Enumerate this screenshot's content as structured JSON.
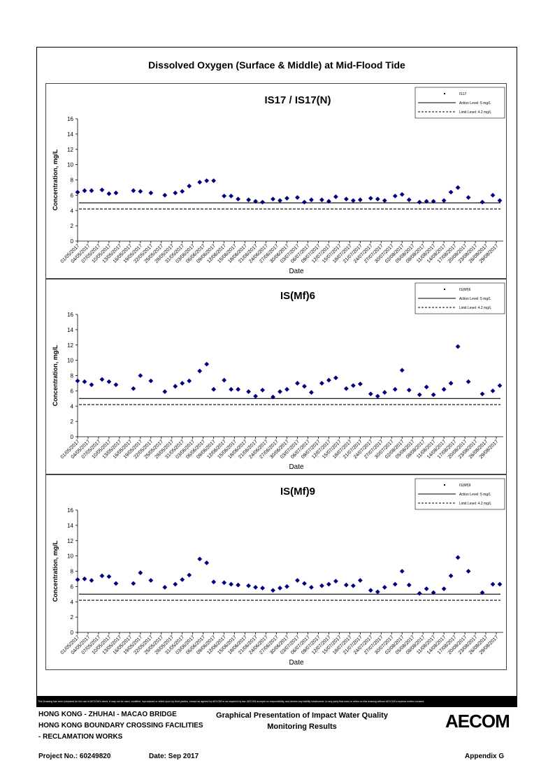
{
  "page": {
    "main_title": "Dissolved Oxygen (Surface & Middle) at Mid-Flood Tide",
    "disclaimer": "This Drawing has been prepared for the use of AECOM's client. It may not be used, modified, reproduced or relied upon by third parties, except as agreed by AECOM or as required by law. AECOM accepts no responsibility, and denies any liability whatsoever, to any party that uses or relies on this drawing without AECOM's express written consent.",
    "footer": {
      "line1": "HONG KONG - ZHUHAI - MACAO BRIDGE",
      "line2": "HONG KONG BOUNDARY CROSSING FACILITIES",
      "line3": "- RECLAMATION WORKS",
      "center1": "Graphical Presentation of Impact Water Quality",
      "center2": "Monitoring Results",
      "project": "Project No.: 60249820",
      "date": "Date: Sep 2017",
      "appendix": "Appendix G",
      "logo": "AECOM"
    },
    "colors": {
      "marker": "#00007f",
      "line": "#000000"
    }
  },
  "chart_data": [
    {
      "type": "scatter",
      "title": "IS17 / IS17(N)",
      "xlabel": "Date",
      "ylabel": "Concentration, mg/L",
      "ylim": [
        0,
        16
      ],
      "yticks": [
        0,
        2,
        4,
        6,
        8,
        10,
        12,
        14,
        16
      ],
      "xlim": [
        "2017-05-01",
        "2017-08-31"
      ],
      "xtick_labels": [
        "01/05/2017",
        "04/05/2017",
        "07/05/2017",
        "10/05/2017",
        "13/05/2017",
        "16/05/2017",
        "19/05/2017",
        "22/05/2017",
        "25/05/2017",
        "28/05/2017",
        "31/05/2017",
        "03/06/2017",
        "06/06/2017",
        "09/06/2017",
        "12/06/2017",
        "15/06/2017",
        "18/06/2017",
        "21/06/2017",
        "24/06/2017",
        "27/06/2017",
        "30/06/2017",
        "03/07/2017",
        "06/07/2017",
        "09/07/2017",
        "12/07/2017",
        "15/07/2017",
        "18/07/2017",
        "21/07/2017",
        "24/07/2017",
        "27/07/2017",
        "30/07/2017",
        "02/08/2017",
        "05/08/2017",
        "08/08/2017",
        "11/08/2017",
        "14/08/2017",
        "17/08/2017",
        "20/08/2017",
        "23/08/2017",
        "26/08/2017",
        "29/08/2017"
      ],
      "legend": {
        "placement": "top-right",
        "entries": [
          "IS17",
          "Action Level: 5 mg/L",
          "Limit Level: 4.2 mg/L"
        ]
      },
      "reference_lines": [
        {
          "name": "Action Level: 5 mg/L",
          "y": 5,
          "style": "solid"
        },
        {
          "name": "Limit Level: 4.2 mg/L",
          "y": 4.2,
          "style": "dashed"
        }
      ],
      "series": [
        {
          "name": "IS17",
          "x": [
            "2017-05-01",
            "2017-05-03",
            "2017-05-05",
            "2017-05-08",
            "2017-05-10",
            "2017-05-12",
            "2017-05-17",
            "2017-05-19",
            "2017-05-22",
            "2017-05-26",
            "2017-05-29",
            "2017-05-31",
            "2017-06-02",
            "2017-06-05",
            "2017-06-07",
            "2017-06-09",
            "2017-06-12",
            "2017-06-14",
            "2017-06-16",
            "2017-06-19",
            "2017-06-21",
            "2017-06-23",
            "2017-06-26",
            "2017-06-28",
            "2017-06-30",
            "2017-07-03",
            "2017-07-05",
            "2017-07-07",
            "2017-07-10",
            "2017-07-12",
            "2017-07-14",
            "2017-07-17",
            "2017-07-19",
            "2017-07-21",
            "2017-07-24",
            "2017-07-26",
            "2017-07-28",
            "2017-07-31",
            "2017-08-02",
            "2017-08-04",
            "2017-08-07",
            "2017-08-09",
            "2017-08-11",
            "2017-08-14",
            "2017-08-16",
            "2017-08-18",
            "2017-08-21",
            "2017-08-25",
            "2017-08-28",
            "2017-08-30"
          ],
          "y": [
            6.4,
            6.6,
            6.6,
            6.7,
            6.2,
            6.3,
            6.6,
            6.5,
            6.3,
            6.0,
            6.3,
            6.5,
            7.2,
            7.7,
            7.9,
            7.9,
            5.9,
            5.9,
            5.5,
            5.4,
            5.2,
            5.1,
            5.5,
            5.3,
            5.6,
            5.7,
            5.1,
            5.4,
            5.4,
            5.2,
            5.8,
            5.5,
            5.3,
            5.4,
            5.6,
            5.5,
            5.3,
            5.9,
            6.1,
            5.4,
            5.1,
            5.2,
            5.2,
            5.3,
            6.4,
            7.0,
            5.7,
            5.1,
            6.0,
            5.3
          ]
        }
      ]
    },
    {
      "type": "scatter",
      "title": "IS(Mf)6",
      "xlabel": "Date",
      "ylabel": "Concentration, mg/L",
      "ylim": [
        0,
        16
      ],
      "yticks": [
        0,
        2,
        4,
        6,
        8,
        10,
        12,
        14,
        16
      ],
      "xlim": [
        "2017-05-01",
        "2017-08-31"
      ],
      "xtick_labels": [
        "01/05/2017",
        "04/05/2017",
        "07/05/2017",
        "10/05/2017",
        "13/05/2017",
        "16/05/2017",
        "19/05/2017",
        "22/05/2017",
        "25/05/2017",
        "28/05/2017",
        "31/05/2017",
        "03/06/2017",
        "06/06/2017",
        "09/06/2017",
        "12/06/2017",
        "15/06/2017",
        "18/06/2017",
        "21/06/2017",
        "24/06/2017",
        "27/06/2017",
        "30/06/2017",
        "03/07/2017",
        "06/07/2017",
        "09/07/2017",
        "12/07/2017",
        "15/07/2017",
        "18/07/2017",
        "21/07/2017",
        "24/07/2017",
        "27/07/2017",
        "30/07/2017",
        "02/08/2017",
        "05/08/2017",
        "08/08/2017",
        "11/08/2017",
        "14/08/2017",
        "17/08/2017",
        "20/08/2017",
        "23/08/2017",
        "26/08/2017",
        "29/08/2017"
      ],
      "legend": {
        "placement": "top-right",
        "entries": [
          "IS(Mf)6",
          "Action Level: 5 mg/L",
          "Limit Level: 4.2 mg/L"
        ]
      },
      "reference_lines": [
        {
          "name": "Action Level: 5 mg/L",
          "y": 5,
          "style": "solid"
        },
        {
          "name": "Limit Level: 4.2 mg/L",
          "y": 4.2,
          "style": "dashed"
        }
      ],
      "series": [
        {
          "name": "IS(Mf)6",
          "x": [
            "2017-05-01",
            "2017-05-03",
            "2017-05-05",
            "2017-05-08",
            "2017-05-10",
            "2017-05-12",
            "2017-05-17",
            "2017-05-19",
            "2017-05-22",
            "2017-05-26",
            "2017-05-29",
            "2017-05-31",
            "2017-06-02",
            "2017-06-05",
            "2017-06-07",
            "2017-06-09",
            "2017-06-12",
            "2017-06-14",
            "2017-06-16",
            "2017-06-19",
            "2017-06-21",
            "2017-06-23",
            "2017-06-26",
            "2017-06-28",
            "2017-06-30",
            "2017-07-03",
            "2017-07-05",
            "2017-07-07",
            "2017-07-10",
            "2017-07-12",
            "2017-07-14",
            "2017-07-17",
            "2017-07-19",
            "2017-07-21",
            "2017-07-24",
            "2017-07-26",
            "2017-07-28",
            "2017-07-31",
            "2017-08-02",
            "2017-08-04",
            "2017-08-07",
            "2017-08-09",
            "2017-08-11",
            "2017-08-14",
            "2017-08-16",
            "2017-08-18",
            "2017-08-21",
            "2017-08-25",
            "2017-08-28",
            "2017-08-30"
          ],
          "y": [
            7.3,
            7.2,
            6.8,
            7.5,
            7.2,
            6.8,
            6.3,
            8.0,
            7.3,
            5.9,
            6.6,
            7.0,
            7.3,
            8.6,
            9.5,
            6.2,
            7.4,
            6.2,
            6.2,
            5.9,
            5.3,
            6.1,
            5.2,
            5.9,
            6.2,
            7.0,
            6.6,
            5.8,
            7.0,
            7.4,
            7.7,
            6.3,
            6.7,
            6.9,
            5.6,
            5.3,
            5.8,
            6.2,
            8.7,
            6.1,
            5.5,
            6.5,
            5.5,
            6.2,
            7.0,
            11.8,
            7.2,
            5.6,
            6.0,
            6.7
          ]
        }
      ]
    },
    {
      "type": "scatter",
      "title": "IS(Mf)9",
      "xlabel": "Date",
      "ylabel": "Concentration, mg/L",
      "ylim": [
        0,
        16
      ],
      "yticks": [
        0,
        2,
        4,
        6,
        8,
        10,
        12,
        14,
        16
      ],
      "xlim": [
        "2017-05-01",
        "2017-08-31"
      ],
      "xtick_labels": [
        "01/05/2017",
        "04/05/2017",
        "07/05/2017",
        "10/05/2017",
        "13/05/2017",
        "16/05/2017",
        "19/05/2017",
        "22/05/2017",
        "25/05/2017",
        "28/05/2017",
        "31/05/2017",
        "03/06/2017",
        "06/06/2017",
        "09/06/2017",
        "12/06/2017",
        "15/06/2017",
        "18/06/2017",
        "21/06/2017",
        "24/06/2017",
        "27/06/2017",
        "30/06/2017",
        "03/07/2017",
        "06/07/2017",
        "09/07/2017",
        "12/07/2017",
        "15/07/2017",
        "18/07/2017",
        "21/07/2017",
        "24/07/2017",
        "27/07/2017",
        "30/07/2017",
        "02/08/2017",
        "05/08/2017",
        "08/08/2017",
        "11/08/2017",
        "14/08/2017",
        "17/08/2017",
        "20/08/2017",
        "23/08/2017",
        "26/08/2017",
        "29/08/2017"
      ],
      "legend": {
        "placement": "top-right",
        "entries": [
          "IS(Mf)9",
          "Action Level: 5 mg/L",
          "Limit Level: 4.2 mg/L"
        ]
      },
      "reference_lines": [
        {
          "name": "Action Level: 5 mg/L",
          "y": 5,
          "style": "solid"
        },
        {
          "name": "Limit Level: 4.2 mg/L",
          "y": 4.2,
          "style": "dashed"
        }
      ],
      "series": [
        {
          "name": "IS(Mf)9",
          "x": [
            "2017-05-01",
            "2017-05-03",
            "2017-05-05",
            "2017-05-08",
            "2017-05-10",
            "2017-05-12",
            "2017-05-17",
            "2017-05-19",
            "2017-05-22",
            "2017-05-26",
            "2017-05-29",
            "2017-05-31",
            "2017-06-02",
            "2017-06-05",
            "2017-06-07",
            "2017-06-09",
            "2017-06-12",
            "2017-06-14",
            "2017-06-16",
            "2017-06-19",
            "2017-06-21",
            "2017-06-23",
            "2017-06-26",
            "2017-06-28",
            "2017-06-30",
            "2017-07-03",
            "2017-07-05",
            "2017-07-07",
            "2017-07-10",
            "2017-07-12",
            "2017-07-14",
            "2017-07-17",
            "2017-07-19",
            "2017-07-21",
            "2017-07-24",
            "2017-07-26",
            "2017-07-28",
            "2017-07-31",
            "2017-08-02",
            "2017-08-04",
            "2017-08-07",
            "2017-08-09",
            "2017-08-11",
            "2017-08-14",
            "2017-08-16",
            "2017-08-18",
            "2017-08-21",
            "2017-08-25",
            "2017-08-28",
            "2017-08-30"
          ],
          "y": [
            6.9,
            7.0,
            6.8,
            7.4,
            7.3,
            6.4,
            6.4,
            7.8,
            6.8,
            5.9,
            6.3,
            6.9,
            7.5,
            9.6,
            9.1,
            6.6,
            6.5,
            6.3,
            6.2,
            6.1,
            5.9,
            5.8,
            5.5,
            5.8,
            6.0,
            6.8,
            6.4,
            5.9,
            6.1,
            6.3,
            6.7,
            6.2,
            6.1,
            6.8,
            5.5,
            5.3,
            5.9,
            6.3,
            8.0,
            6.2,
            5.1,
            5.7,
            5.2,
            5.7,
            7.4,
            9.8,
            8.0,
            5.2,
            6.3,
            6.3
          ]
        }
      ]
    }
  ]
}
